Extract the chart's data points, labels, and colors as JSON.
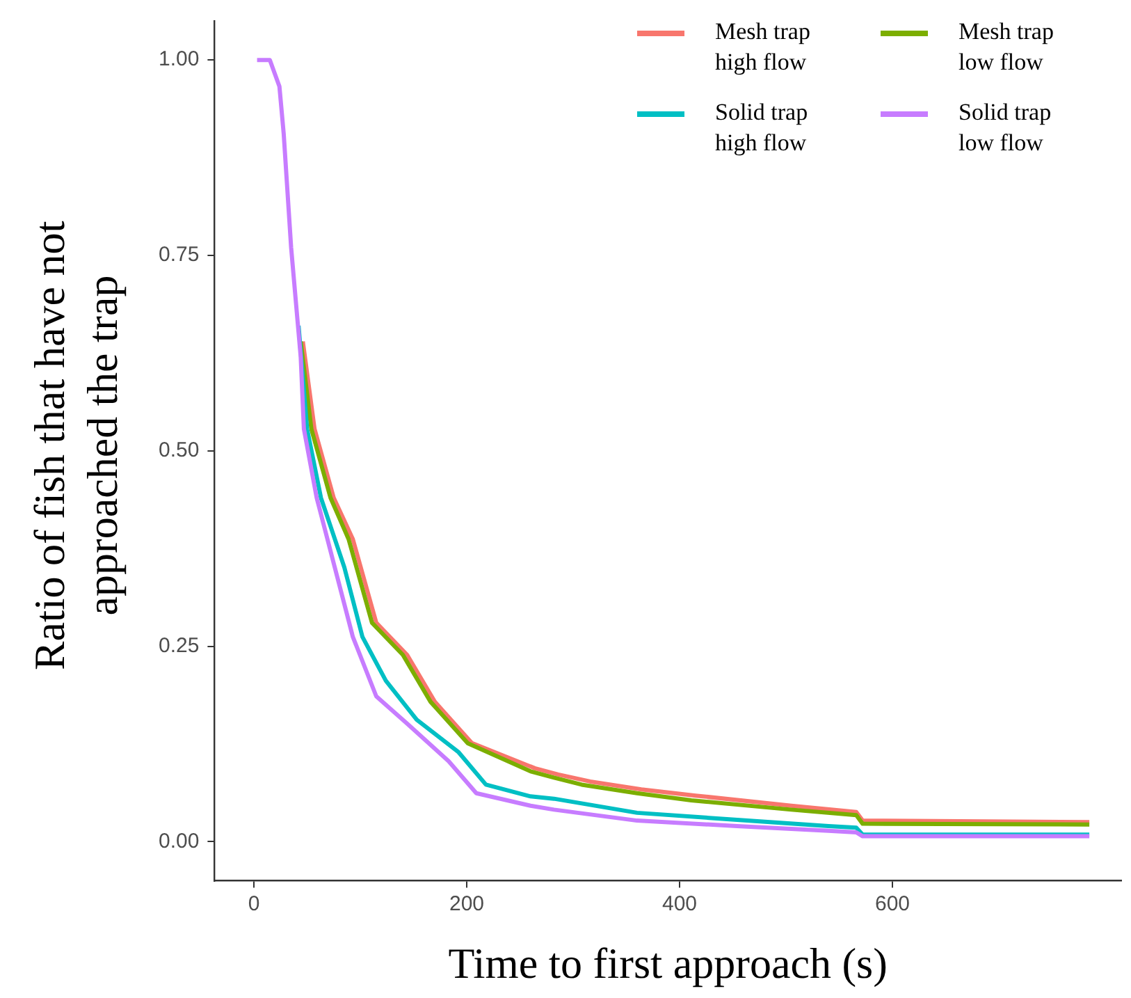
{
  "chart_data": {
    "type": "line",
    "xlabel": "Time to first approach (s)",
    "ylabel": "Ratio of fish that have not approached the trap",
    "xlim": [
      -37,
      815
    ],
    "xticks": [
      0,
      200,
      400,
      600
    ],
    "ylim": [
      -0.05,
      1.05
    ],
    "yticks": [
      {
        "value": 0,
        "label": "0.00"
      },
      {
        "value": 0.25,
        "label": "0.25"
      },
      {
        "value": 0.5,
        "label": "0.50"
      },
      {
        "value": 0.75,
        "label": "0.75"
      },
      {
        "value": 1,
        "label": "1.00"
      }
    ],
    "grid": false,
    "legend": "top right",
    "marker": "none",
    "line_style": "solid",
    "series": [
      {
        "name": "Mesh trap high flow",
        "color": "#f8766d",
        "x": [
          46,
          57,
          75,
          93,
          115,
          144,
          170,
          205,
          264,
          286,
          316,
          364,
          415,
          505,
          566,
          572,
          785
        ],
        "values": [
          0.64,
          0.528,
          0.44,
          0.387,
          0.28,
          0.239,
          0.179,
          0.126,
          0.094,
          0.086,
          0.077,
          0.067,
          0.059,
          0.046,
          0.038,
          0.027,
          0.025
        ]
      },
      {
        "name": "Mesh trap low flow",
        "color": "#7cae00",
        "x": [
          44,
          54,
          72,
          89,
          111,
          140,
          166,
          201,
          260,
          282,
          308,
          360,
          411,
          505,
          566,
          572,
          785
        ],
        "values": [
          0.64,
          0.528,
          0.44,
          0.387,
          0.28,
          0.239,
          0.179,
          0.126,
          0.09,
          0.082,
          0.073,
          0.062,
          0.053,
          0.041,
          0.034,
          0.023,
          0.022
        ]
      },
      {
        "name": "Solid trap high flow",
        "color": "#00bfc4",
        "x": [
          42,
          50,
          63,
          85,
          102,
          124,
          153,
          192,
          218,
          260,
          282,
          360,
          454,
          540,
          566,
          572,
          785
        ],
        "values": [
          0.66,
          0.528,
          0.44,
          0.351,
          0.262,
          0.206,
          0.156,
          0.115,
          0.073,
          0.058,
          0.055,
          0.037,
          0.028,
          0.02,
          0.018,
          0.009,
          0.009
        ]
      },
      {
        "name": "Solid trap low flow",
        "color": "#c77cff",
        "x": [
          3,
          15,
          24,
          28,
          35,
          44,
          47,
          59,
          76,
          93,
          115,
          144,
          183,
          209,
          260,
          282,
          360,
          454,
          540,
          566,
          572,
          785
        ],
        "values": [
          1,
          1,
          0.966,
          0.906,
          0.76,
          0.62,
          0.528,
          0.44,
          0.351,
          0.262,
          0.186,
          0.151,
          0.103,
          0.062,
          0.046,
          0.041,
          0.027,
          0.02,
          0.014,
          0.012,
          0.007,
          0.007
        ]
      }
    ]
  }
}
